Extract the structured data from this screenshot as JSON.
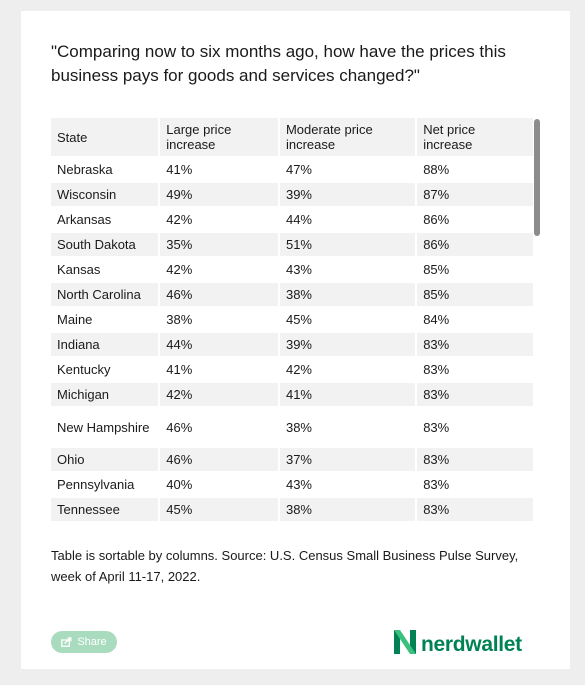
{
  "question": "\"Comparing now to six months ago, how have the prices this business pays for goods and services changed?\"",
  "table": {
    "headers": [
      "State",
      "Large price increase",
      "Moderate price increase",
      "Net price increase"
    ],
    "rows": [
      [
        "Nebraska",
        "41%",
        "47%",
        "88%"
      ],
      [
        "Wisconsin",
        "49%",
        "39%",
        "87%"
      ],
      [
        "Arkansas",
        "42%",
        "44%",
        "86%"
      ],
      [
        "South Dakota",
        "35%",
        "51%",
        "86%"
      ],
      [
        "Kansas",
        "42%",
        "43%",
        "85%"
      ],
      [
        "North Carolina",
        "46%",
        "38%",
        "85%"
      ],
      [
        "Maine",
        "38%",
        "45%",
        "84%"
      ],
      [
        "Indiana",
        "44%",
        "39%",
        "83%"
      ],
      [
        "Kentucky",
        "41%",
        "42%",
        "83%"
      ],
      [
        "Michigan",
        "42%",
        "41%",
        "83%"
      ],
      [
        "New Hampshire",
        "46%",
        "38%",
        "83%"
      ],
      [
        "Ohio",
        "46%",
        "37%",
        "83%"
      ],
      [
        "Pennsylvania",
        "40%",
        "43%",
        "83%"
      ],
      [
        "Tennessee",
        "45%",
        "38%",
        "83%"
      ]
    ]
  },
  "source": "Table is sortable by columns. Source: U.S. Census Small Business Pulse Survey, week of April 11-17, 2022.",
  "share_label": "Share",
  "share_icon": "share-icon",
  "logo": {
    "text": "nerdwallet",
    "icon": "nerdwallet-n-logo",
    "color": "#008254"
  },
  "colors": {
    "share_button": "#a9dcbf",
    "row_stripe": "#f2f2f2"
  }
}
